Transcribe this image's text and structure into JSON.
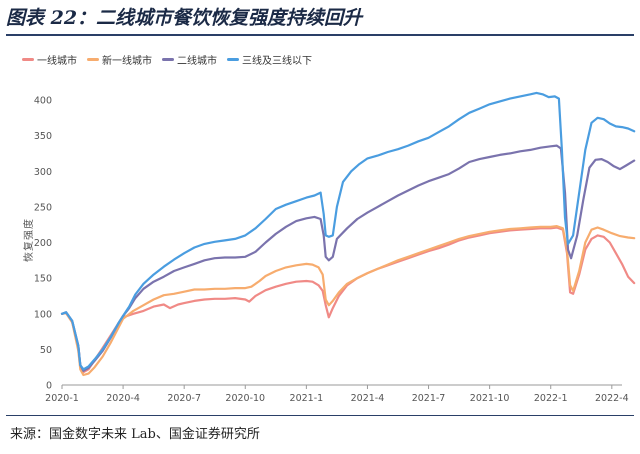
{
  "figure": {
    "title": "图表 22：二线城市餐饮恢复强度持续回升",
    "source": "来源：国金数字未来 Lab、国金证券研究所"
  },
  "chart_data": {
    "type": "line",
    "title": "",
    "xlabel": "",
    "ylabel": "恢复强度",
    "ylim": [
      0,
      420
    ],
    "yticks": [
      0,
      50,
      100,
      150,
      200,
      250,
      300,
      350,
      400
    ],
    "xlim": [
      0,
      27.5
    ],
    "xticks": [
      {
        "x": 0,
        "label": "2020-1"
      },
      {
        "x": 3,
        "label": "2020-4"
      },
      {
        "x": 6,
        "label": "2020-7"
      },
      {
        "x": 9,
        "label": "2020-10"
      },
      {
        "x": 12,
        "label": "2021-1"
      },
      {
        "x": 15,
        "label": "2021-4"
      },
      {
        "x": 18,
        "label": "2021-7"
      },
      {
        "x": 21,
        "label": "2021-10"
      },
      {
        "x": 24,
        "label": "2022-1"
      },
      {
        "x": 27,
        "label": "2022-4"
      }
    ],
    "grid": false,
    "legend_position": "top-left",
    "series": [
      {
        "name": "一线城市",
        "color": "#f08a86",
        "points": [
          [
            0,
            100
          ],
          [
            0.2,
            101
          ],
          [
            0.5,
            88
          ],
          [
            0.8,
            55
          ],
          [
            0.9,
            28
          ],
          [
            1.05,
            18
          ],
          [
            1.3,
            22
          ],
          [
            1.6,
            35
          ],
          [
            2,
            52
          ],
          [
            2.4,
            70
          ],
          [
            2.8,
            88
          ],
          [
            3,
            95
          ],
          [
            3.5,
            100
          ],
          [
            4,
            104
          ],
          [
            4.5,
            110
          ],
          [
            5,
            113
          ],
          [
            5.3,
            108
          ],
          [
            5.7,
            113
          ],
          [
            6,
            115
          ],
          [
            6.5,
            118
          ],
          [
            7,
            120
          ],
          [
            7.5,
            121
          ],
          [
            8,
            121
          ],
          [
            8.5,
            122
          ],
          [
            9,
            120
          ],
          [
            9.2,
            117
          ],
          [
            9.5,
            125
          ],
          [
            10,
            133
          ],
          [
            10.5,
            138
          ],
          [
            11,
            142
          ],
          [
            11.5,
            145
          ],
          [
            12,
            146
          ],
          [
            12.3,
            145
          ],
          [
            12.6,
            140
          ],
          [
            12.8,
            132
          ],
          [
            12.95,
            112
          ],
          [
            13.1,
            95
          ],
          [
            13.3,
            108
          ],
          [
            13.6,
            125
          ],
          [
            14,
            140
          ],
          [
            14.5,
            150
          ],
          [
            15,
            157
          ],
          [
            15.5,
            163
          ],
          [
            16,
            168
          ],
          [
            16.5,
            173
          ],
          [
            17,
            178
          ],
          [
            17.5,
            183
          ],
          [
            18,
            188
          ],
          [
            18.5,
            192
          ],
          [
            19,
            197
          ],
          [
            19.5,
            203
          ],
          [
            20,
            207
          ],
          [
            20.5,
            210
          ],
          [
            21,
            213
          ],
          [
            21.5,
            215
          ],
          [
            22,
            217
          ],
          [
            22.5,
            218
          ],
          [
            23,
            219
          ],
          [
            23.5,
            220
          ],
          [
            24,
            220
          ],
          [
            24.3,
            221
          ],
          [
            24.6,
            218
          ],
          [
            24.8,
            185
          ],
          [
            24.95,
            130
          ],
          [
            25.1,
            128
          ],
          [
            25.4,
            155
          ],
          [
            25.7,
            190
          ],
          [
            26,
            205
          ],
          [
            26.3,
            210
          ],
          [
            26.6,
            208
          ],
          [
            26.9,
            200
          ],
          [
            27.2,
            185
          ],
          [
            27.5,
            170
          ],
          [
            27.8,
            152
          ],
          [
            28.1,
            143
          ]
        ]
      },
      {
        "name": "新一线城市",
        "color": "#f7ac6e",
        "points": [
          [
            0,
            100
          ],
          [
            0.2,
            101
          ],
          [
            0.5,
            88
          ],
          [
            0.8,
            48
          ],
          [
            0.9,
            22
          ],
          [
            1.05,
            14
          ],
          [
            1.3,
            16
          ],
          [
            1.6,
            25
          ],
          [
            2,
            40
          ],
          [
            2.4,
            60
          ],
          [
            2.8,
            82
          ],
          [
            3,
            93
          ],
          [
            3.5,
            104
          ],
          [
            4,
            112
          ],
          [
            4.5,
            120
          ],
          [
            5,
            126
          ],
          [
            5.5,
            128
          ],
          [
            6,
            131
          ],
          [
            6.5,
            134
          ],
          [
            7,
            134
          ],
          [
            7.5,
            135
          ],
          [
            8,
            135
          ],
          [
            8.5,
            136
          ],
          [
            9,
            136
          ],
          [
            9.3,
            138
          ],
          [
            9.7,
            146
          ],
          [
            10,
            153
          ],
          [
            10.5,
            160
          ],
          [
            11,
            165
          ],
          [
            11.5,
            168
          ],
          [
            12,
            170
          ],
          [
            12.3,
            169
          ],
          [
            12.6,
            165
          ],
          [
            12.8,
            155
          ],
          [
            12.95,
            120
          ],
          [
            13.1,
            112
          ],
          [
            13.3,
            118
          ],
          [
            13.6,
            130
          ],
          [
            14,
            142
          ],
          [
            14.5,
            150
          ],
          [
            15,
            157
          ],
          [
            15.5,
            163
          ],
          [
            16,
            169
          ],
          [
            16.5,
            175
          ],
          [
            17,
            180
          ],
          [
            17.5,
            185
          ],
          [
            18,
            190
          ],
          [
            18.5,
            195
          ],
          [
            19,
            200
          ],
          [
            19.5,
            205
          ],
          [
            20,
            209
          ],
          [
            20.5,
            212
          ],
          [
            21,
            215
          ],
          [
            21.5,
            217
          ],
          [
            22,
            219
          ],
          [
            22.5,
            220
          ],
          [
            23,
            221
          ],
          [
            23.5,
            222
          ],
          [
            24,
            222
          ],
          [
            24.3,
            223
          ],
          [
            24.6,
            220
          ],
          [
            24.8,
            190
          ],
          [
            24.95,
            140
          ],
          [
            25.1,
            132
          ],
          [
            25.4,
            160
          ],
          [
            25.7,
            200
          ],
          [
            26,
            218
          ],
          [
            26.3,
            221
          ],
          [
            26.6,
            218
          ],
          [
            27,
            213
          ],
          [
            27.4,
            209
          ],
          [
            27.8,
            207
          ],
          [
            28.1,
            206
          ]
        ]
      },
      {
        "name": "二线城市",
        "color": "#7a73ad",
        "points": [
          [
            0,
            100
          ],
          [
            0.2,
            102
          ],
          [
            0.5,
            90
          ],
          [
            0.8,
            55
          ],
          [
            0.9,
            28
          ],
          [
            1.05,
            20
          ],
          [
            1.3,
            24
          ],
          [
            1.6,
            34
          ],
          [
            2,
            48
          ],
          [
            2.4,
            67
          ],
          [
            2.8,
            88
          ],
          [
            3,
            97
          ],
          [
            3.3,
            108
          ],
          [
            3.6,
            122
          ],
          [
            4,
            135
          ],
          [
            4.5,
            145
          ],
          [
            5,
            152
          ],
          [
            5.5,
            160
          ],
          [
            6,
            165
          ],
          [
            6.5,
            170
          ],
          [
            7,
            175
          ],
          [
            7.5,
            178
          ],
          [
            8,
            179
          ],
          [
            8.5,
            179
          ],
          [
            9,
            180
          ],
          [
            9.5,
            187
          ],
          [
            10,
            200
          ],
          [
            10.5,
            212
          ],
          [
            11,
            222
          ],
          [
            11.5,
            230
          ],
          [
            12,
            234
          ],
          [
            12.4,
            236
          ],
          [
            12.7,
            233
          ],
          [
            12.85,
            210
          ],
          [
            12.95,
            180
          ],
          [
            13.1,
            175
          ],
          [
            13.3,
            180
          ],
          [
            13.5,
            205
          ],
          [
            14,
            220
          ],
          [
            14.5,
            233
          ],
          [
            15,
            242
          ],
          [
            15.5,
            250
          ],
          [
            16,
            258
          ],
          [
            16.5,
            266
          ],
          [
            17,
            273
          ],
          [
            17.5,
            280
          ],
          [
            18,
            286
          ],
          [
            18.5,
            291
          ],
          [
            19,
            296
          ],
          [
            19.5,
            304
          ],
          [
            20,
            313
          ],
          [
            20.5,
            317
          ],
          [
            21,
            320
          ],
          [
            21.5,
            323
          ],
          [
            22,
            325
          ],
          [
            22.5,
            328
          ],
          [
            23,
            330
          ],
          [
            23.5,
            333
          ],
          [
            24,
            335
          ],
          [
            24.3,
            336
          ],
          [
            24.5,
            332
          ],
          [
            24.7,
            270
          ],
          [
            24.85,
            190
          ],
          [
            25,
            178
          ],
          [
            25.3,
            210
          ],
          [
            25.6,
            260
          ],
          [
            25.9,
            305
          ],
          [
            26.2,
            316
          ],
          [
            26.5,
            317
          ],
          [
            26.8,
            313
          ],
          [
            27.1,
            307
          ],
          [
            27.4,
            303
          ],
          [
            27.7,
            308
          ],
          [
            28.1,
            315
          ]
        ]
      },
      {
        "name": "三线及三线以下",
        "color": "#4a9de0",
        "points": [
          [
            0,
            100
          ],
          [
            0.2,
            102
          ],
          [
            0.5,
            90
          ],
          [
            0.8,
            55
          ],
          [
            0.9,
            28
          ],
          [
            1.05,
            22
          ],
          [
            1.3,
            26
          ],
          [
            1.6,
            36
          ],
          [
            2,
            50
          ],
          [
            2.4,
            68
          ],
          [
            2.8,
            88
          ],
          [
            3,
            97
          ],
          [
            3.3,
            110
          ],
          [
            3.6,
            127
          ],
          [
            4,
            142
          ],
          [
            4.5,
            155
          ],
          [
            5,
            166
          ],
          [
            5.5,
            176
          ],
          [
            6,
            185
          ],
          [
            6.5,
            193
          ],
          [
            7,
            198
          ],
          [
            7.5,
            201
          ],
          [
            8,
            203
          ],
          [
            8.5,
            205
          ],
          [
            9,
            210
          ],
          [
            9.5,
            220
          ],
          [
            10,
            233
          ],
          [
            10.5,
            247
          ],
          [
            11,
            253
          ],
          [
            11.5,
            258
          ],
          [
            12,
            263
          ],
          [
            12.4,
            266
          ],
          [
            12.7,
            270
          ],
          [
            12.85,
            240
          ],
          [
            12.95,
            210
          ],
          [
            13.1,
            208
          ],
          [
            13.3,
            210
          ],
          [
            13.5,
            250
          ],
          [
            13.8,
            285
          ],
          [
            14.2,
            300
          ],
          [
            14.6,
            310
          ],
          [
            15,
            318
          ],
          [
            15.5,
            322
          ],
          [
            16,
            327
          ],
          [
            16.5,
            331
          ],
          [
            17,
            336
          ],
          [
            17.5,
            342
          ],
          [
            18,
            347
          ],
          [
            18.5,
            355
          ],
          [
            19,
            363
          ],
          [
            19.5,
            373
          ],
          [
            20,
            382
          ],
          [
            20.5,
            388
          ],
          [
            21,
            394
          ],
          [
            21.5,
            398
          ],
          [
            22,
            402
          ],
          [
            22.5,
            405
          ],
          [
            23,
            408
          ],
          [
            23.3,
            410
          ],
          [
            23.6,
            408
          ],
          [
            23.9,
            404
          ],
          [
            24.2,
            405
          ],
          [
            24.4,
            402
          ],
          [
            24.55,
            330
          ],
          [
            24.7,
            235
          ],
          [
            24.85,
            198
          ],
          [
            25.1,
            210
          ],
          [
            25.4,
            270
          ],
          [
            25.7,
            330
          ],
          [
            26,
            368
          ],
          [
            26.3,
            375
          ],
          [
            26.6,
            373
          ],
          [
            26.9,
            367
          ],
          [
            27.2,
            363
          ],
          [
            27.5,
            362
          ],
          [
            27.8,
            360
          ],
          [
            28.1,
            356
          ]
        ]
      }
    ]
  }
}
